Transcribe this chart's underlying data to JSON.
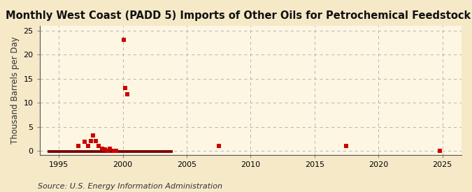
{
  "title": "Monthly West Coast (PADD 5) Imports of Other Oils for Petrochemical Feedstock Use",
  "ylabel": "Thousand Barrels per Day",
  "source": "Source: U.S. Energy Information Administration",
  "fig_background_color": "#f5e9c8",
  "plot_background_color": "#fdf6e3",
  "scatter_color": "#cc0000",
  "line_color": "#7a0000",
  "xlim": [
    1993.5,
    2026.5
  ],
  "ylim": [
    -0.8,
    26
  ],
  "yticks": [
    0,
    5,
    10,
    15,
    20,
    25
  ],
  "xticks": [
    1995,
    2000,
    2005,
    2010,
    2015,
    2020,
    2025
  ],
  "scatter_x": [
    1996.5,
    1997.0,
    1997.3,
    1997.5,
    1997.7,
    1997.9,
    1998.1,
    1998.4,
    1998.6,
    1998.8,
    1999.0,
    1999.3,
    1999.5,
    2000.1,
    2000.2,
    2000.35,
    2007.5,
    2017.5,
    2024.8
  ],
  "scatter_y": [
    1.0,
    1.9,
    1.0,
    2.0,
    3.2,
    2.0,
    1.1,
    0.5,
    0.3,
    0.1,
    0.5,
    0.1,
    0.05,
    23.0,
    13.0,
    11.8,
    1.0,
    1.0,
    0.1
  ],
  "line_x_start": 1994.1,
  "line_x_end": 2003.9,
  "line_y": -0.15,
  "title_fontsize": 10.5,
  "label_fontsize": 8.5,
  "tick_fontsize": 8,
  "source_fontsize": 8
}
